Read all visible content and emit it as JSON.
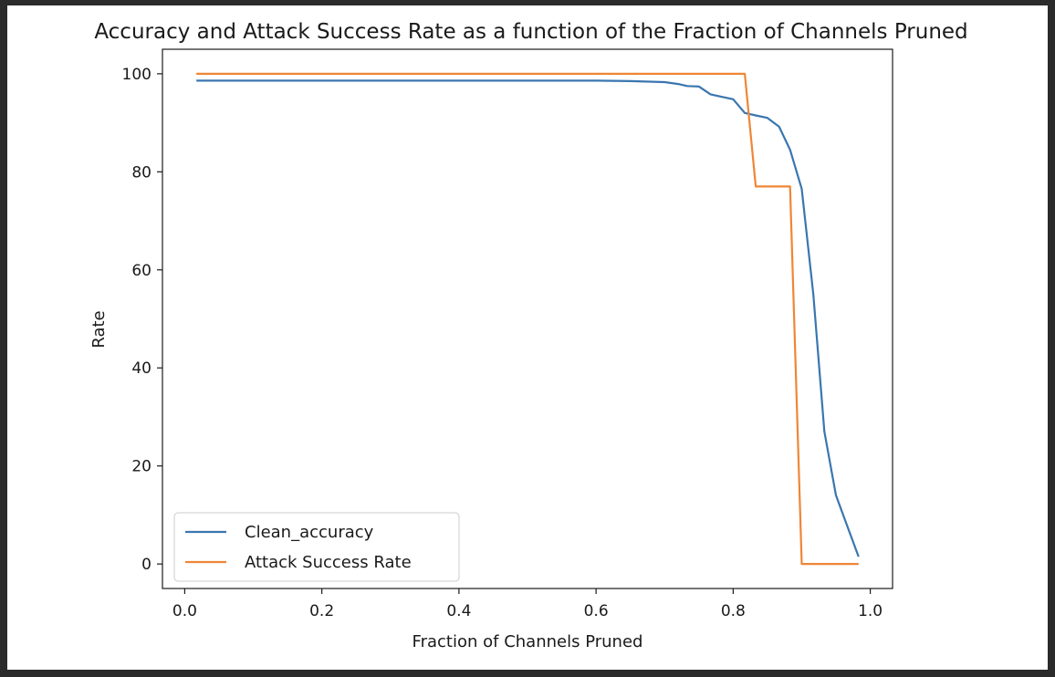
{
  "chart_data": {
    "type": "line",
    "title": "Accuracy and Attack Success Rate as a function of the Fraction of Channels Pruned",
    "xlabel": "Fraction of Channels Pruned",
    "ylabel": "Rate",
    "xlim": [
      -0.0325,
      1.0325
    ],
    "ylim": [
      -5,
      105
    ],
    "xticks": [
      0.0,
      0.2,
      0.4,
      0.6,
      0.8,
      1.0
    ],
    "xtick_labels": [
      "0.0",
      "0.2",
      "0.4",
      "0.6",
      "0.8",
      "1.0"
    ],
    "yticks": [
      0,
      20,
      40,
      60,
      80,
      100
    ],
    "ytick_labels": [
      "0",
      "20",
      "40",
      "60",
      "80",
      "100"
    ],
    "grid": false,
    "legend_position": "lower-left",
    "series": [
      {
        "name": "Clean_accuracy",
        "color": "#3a76af",
        "x": [
          0.017,
          0.1,
          0.2,
          0.3,
          0.4,
          0.5,
          0.6,
          0.65,
          0.7,
          0.72,
          0.733,
          0.75,
          0.767,
          0.783,
          0.8,
          0.817,
          0.833,
          0.85,
          0.867,
          0.883,
          0.9,
          0.917,
          0.933,
          0.95,
          0.967,
          0.983
        ],
        "y": [
          98.6,
          98.6,
          98.6,
          98.6,
          98.6,
          98.6,
          98.6,
          98.5,
          98.3,
          97.9,
          97.5,
          97.4,
          95.8,
          95.3,
          94.8,
          92.0,
          91.5,
          91.0,
          89.2,
          84.5,
          76.5,
          55.0,
          27.0,
          14.0,
          7.5,
          1.5
        ]
      },
      {
        "name": "Attack Success Rate",
        "color": "#ef8636",
        "x": [
          0.017,
          0.5,
          0.8,
          0.817,
          0.833,
          0.85,
          0.867,
          0.883,
          0.9,
          0.917,
          0.95,
          0.983
        ],
        "y": [
          100,
          100,
          100,
          100,
          77.0,
          77.0,
          77.0,
          77.0,
          0,
          0,
          0,
          0
        ]
      }
    ]
  }
}
